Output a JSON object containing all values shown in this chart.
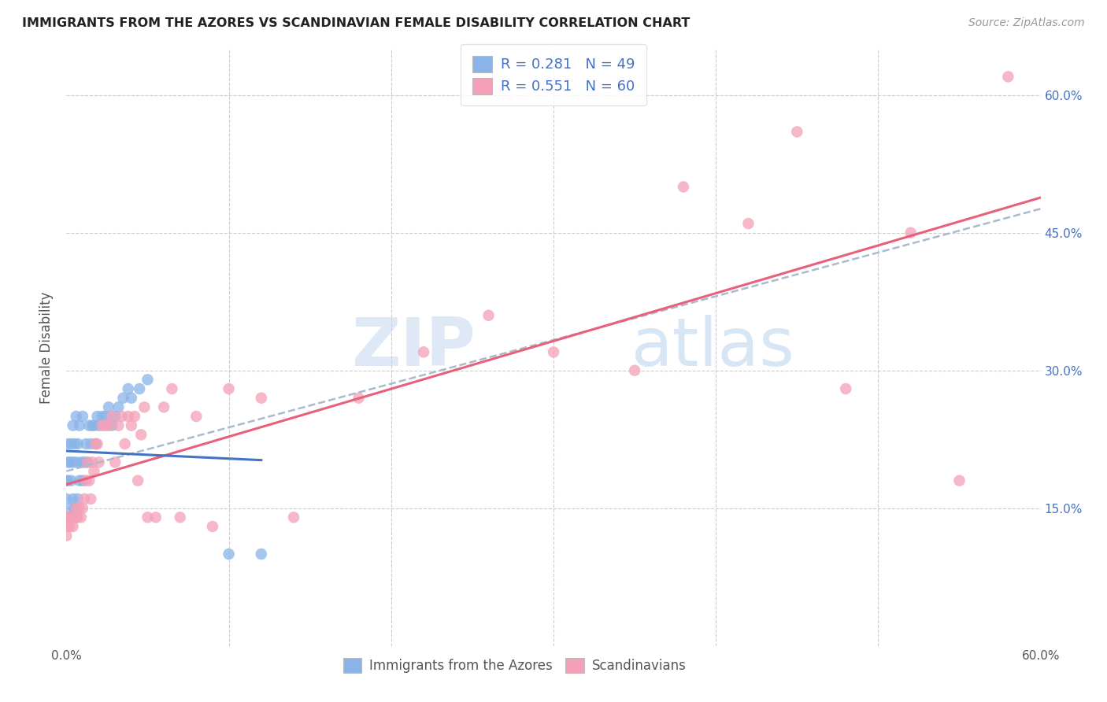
{
  "title": "IMMIGRANTS FROM THE AZORES VS SCANDINAVIAN FEMALE DISABILITY CORRELATION CHART",
  "source": "Source: ZipAtlas.com",
  "ylabel": "Female Disability",
  "xlim": [
    0.0,
    0.6
  ],
  "ylim": [
    0.0,
    0.65
  ],
  "R_azores": 0.281,
  "N_azores": 49,
  "R_scand": 0.551,
  "N_scand": 60,
  "color_azores": "#8ab4e8",
  "color_scand": "#f4a0b8",
  "color_line_azores": "#4472c4",
  "color_line_scand": "#e8607a",
  "color_trend": "#aabbcc",
  "watermark_zip": "ZIP",
  "watermark_atlas": "atlas",
  "azores_x": [
    0.0,
    0.0,
    0.0,
    0.001,
    0.001,
    0.001,
    0.002,
    0.002,
    0.003,
    0.003,
    0.003,
    0.004,
    0.004,
    0.004,
    0.005,
    0.005,
    0.006,
    0.006,
    0.006,
    0.007,
    0.007,
    0.008,
    0.008,
    0.009,
    0.01,
    0.01,
    0.011,
    0.012,
    0.013,
    0.014,
    0.015,
    0.016,
    0.017,
    0.018,
    0.019,
    0.02,
    0.022,
    0.024,
    0.026,
    0.028,
    0.03,
    0.032,
    0.035,
    0.038,
    0.04,
    0.045,
    0.05,
    0.1,
    0.12
  ],
  "azores_y": [
    0.14,
    0.16,
    0.18,
    0.18,
    0.2,
    0.22,
    0.14,
    0.2,
    0.15,
    0.18,
    0.22,
    0.16,
    0.2,
    0.24,
    0.15,
    0.22,
    0.14,
    0.2,
    0.25,
    0.16,
    0.22,
    0.18,
    0.24,
    0.2,
    0.18,
    0.25,
    0.2,
    0.22,
    0.2,
    0.24,
    0.22,
    0.24,
    0.24,
    0.22,
    0.25,
    0.24,
    0.25,
    0.25,
    0.26,
    0.24,
    0.25,
    0.26,
    0.27,
    0.28,
    0.27,
    0.28,
    0.29,
    0.1,
    0.1
  ],
  "scand_x": [
    0.0,
    0.0,
    0.001,
    0.001,
    0.002,
    0.003,
    0.004,
    0.005,
    0.006,
    0.006,
    0.007,
    0.008,
    0.009,
    0.01,
    0.011,
    0.012,
    0.013,
    0.014,
    0.015,
    0.016,
    0.017,
    0.018,
    0.019,
    0.02,
    0.022,
    0.024,
    0.026,
    0.028,
    0.03,
    0.032,
    0.034,
    0.036,
    0.038,
    0.04,
    0.042,
    0.044,
    0.046,
    0.048,
    0.05,
    0.055,
    0.06,
    0.065,
    0.07,
    0.08,
    0.09,
    0.1,
    0.12,
    0.14,
    0.18,
    0.22,
    0.26,
    0.3,
    0.35,
    0.38,
    0.42,
    0.45,
    0.48,
    0.52,
    0.55,
    0.58
  ],
  "scand_y": [
    0.12,
    0.14,
    0.13,
    0.14,
    0.13,
    0.14,
    0.13,
    0.14,
    0.14,
    0.15,
    0.14,
    0.15,
    0.14,
    0.15,
    0.16,
    0.18,
    0.2,
    0.18,
    0.16,
    0.2,
    0.19,
    0.22,
    0.22,
    0.2,
    0.24,
    0.24,
    0.24,
    0.25,
    0.2,
    0.24,
    0.25,
    0.22,
    0.25,
    0.24,
    0.25,
    0.18,
    0.23,
    0.26,
    0.14,
    0.14,
    0.26,
    0.28,
    0.14,
    0.25,
    0.13,
    0.28,
    0.27,
    0.14,
    0.27,
    0.32,
    0.36,
    0.32,
    0.3,
    0.5,
    0.46,
    0.56,
    0.28,
    0.45,
    0.18,
    0.62
  ]
}
